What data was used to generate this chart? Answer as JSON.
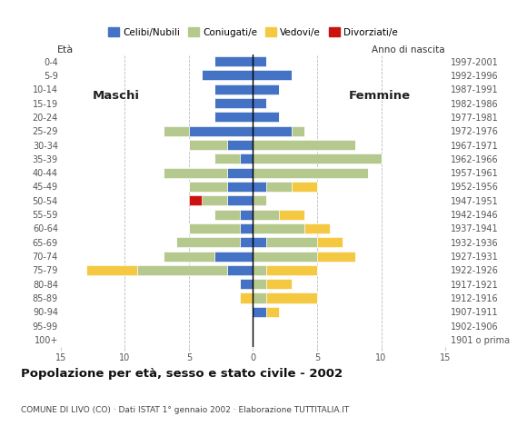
{
  "age_groups": [
    "100+",
    "95-99",
    "90-94",
    "85-89",
    "80-84",
    "75-79",
    "70-74",
    "65-69",
    "60-64",
    "55-59",
    "50-54",
    "45-49",
    "40-44",
    "35-39",
    "30-34",
    "25-29",
    "20-24",
    "15-19",
    "10-14",
    "5-9",
    "0-4"
  ],
  "birth_years": [
    "1901 o prima",
    "1902-1906",
    "1907-1911",
    "1912-1916",
    "1917-1921",
    "1922-1926",
    "1927-1931",
    "1932-1936",
    "1937-1941",
    "1942-1946",
    "1947-1951",
    "1952-1956",
    "1957-1961",
    "1962-1966",
    "1967-1971",
    "1972-1976",
    "1977-1981",
    "1982-1986",
    "1987-1991",
    "1992-1996",
    "1997-2001"
  ],
  "maschi": {
    "Celibi": [
      0,
      0,
      0,
      0,
      1,
      2,
      3,
      1,
      1,
      1,
      2,
      2,
      2,
      1,
      2,
      5,
      3,
      3,
      3,
      4,
      3
    ],
    "Coniugati": [
      0,
      0,
      0,
      0,
      0,
      7,
      4,
      5,
      4,
      2,
      2,
      3,
      5,
      2,
      3,
      2,
      0,
      0,
      0,
      0,
      0
    ],
    "Vedovi": [
      0,
      0,
      0,
      1,
      0,
      4,
      0,
      0,
      0,
      0,
      0,
      0,
      0,
      0,
      0,
      0,
      0,
      0,
      0,
      0,
      0
    ],
    "Divorziati": [
      0,
      0,
      0,
      0,
      0,
      0,
      0,
      0,
      0,
      0,
      1,
      0,
      0,
      0,
      0,
      0,
      0,
      0,
      0,
      0,
      0
    ]
  },
  "femmine": {
    "Celibi": [
      0,
      0,
      1,
      0,
      0,
      0,
      0,
      1,
      0,
      0,
      0,
      1,
      0,
      0,
      0,
      3,
      2,
      1,
      2,
      3,
      1
    ],
    "Coniugati": [
      0,
      0,
      0,
      1,
      1,
      1,
      5,
      4,
      4,
      2,
      1,
      2,
      9,
      10,
      8,
      1,
      0,
      0,
      0,
      0,
      0
    ],
    "Vedovi": [
      0,
      0,
      1,
      4,
      2,
      4,
      3,
      2,
      2,
      2,
      0,
      2,
      0,
      0,
      0,
      0,
      0,
      0,
      0,
      0,
      0
    ],
    "Divorziati": [
      0,
      0,
      0,
      0,
      0,
      0,
      0,
      0,
      0,
      0,
      0,
      0,
      0,
      0,
      0,
      0,
      0,
      0,
      0,
      0,
      0
    ]
  },
  "colors": {
    "Celibi": "#4472c4",
    "Coniugati": "#b5c98e",
    "Vedovi": "#f5c842",
    "Divorziati": "#cc1111"
  },
  "legend_labels": [
    "Celibi/Nubili",
    "Coniugati/e",
    "Vedovi/e",
    "Divorziati/e"
  ],
  "title": "Popolazione per età, sesso e stato civile - 2002",
  "subtitle": "COMUNE DI LIVO (CO) · Dati ISTAT 1° gennaio 2002 · Elaborazione TUTTITALIA.IT",
  "maschi_label": "Maschi",
  "femmine_label": "Femmine",
  "eta_label": "Età",
  "anno_label": "Anno di nascita",
  "xlim": 15,
  "bg_color": "#ffffff",
  "grid_color": "#bbbbbb"
}
